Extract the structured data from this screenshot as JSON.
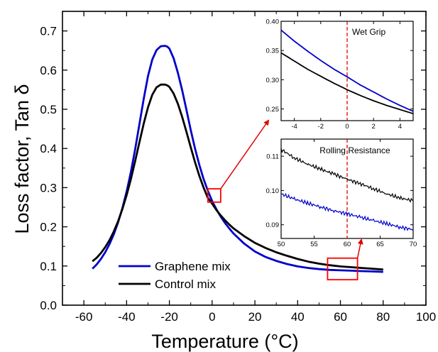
{
  "chart_data": [
    {
      "type": "line",
      "xlabel": "Temperature (°C)",
      "ylabel": "Loss factor, Tan δ",
      "xlim": [
        -70,
        100
      ],
      "ylim": [
        0,
        0.75
      ],
      "xticks": [
        -60,
        -40,
        -20,
        0,
        20,
        40,
        60,
        80,
        100
      ],
      "yticks": [
        0.0,
        0.1,
        0.2,
        0.3,
        0.4,
        0.5,
        0.6,
        0.7
      ],
      "legend_position": "bottom-left",
      "series": [
        {
          "name": "Graphene mix",
          "color": "#0000cc",
          "x": [
            -56,
            -54,
            -52,
            -50,
            -48,
            -46,
            -44,
            -42,
            -40,
            -38,
            -36,
            -34,
            -32,
            -30,
            -28,
            -26,
            -24,
            -22,
            -21,
            -20,
            -18,
            -16,
            -14,
            -12,
            -10,
            -8,
            -6,
            -4,
            -2,
            0,
            2,
            4,
            6,
            8,
            10,
            15,
            20,
            25,
            30,
            35,
            40,
            45,
            50,
            55,
            60,
            65,
            70,
            75,
            80
          ],
          "y": [
            0.093,
            0.104,
            0.118,
            0.135,
            0.156,
            0.181,
            0.211,
            0.247,
            0.29,
            0.34,
            0.398,
            0.462,
            0.526,
            0.585,
            0.627,
            0.651,
            0.661,
            0.662,
            0.66,
            0.655,
            0.63,
            0.593,
            0.548,
            0.498,
            0.447,
            0.4,
            0.358,
            0.322,
            0.292,
            0.266,
            0.245,
            0.226,
            0.21,
            0.196,
            0.183,
            0.157,
            0.137,
            0.123,
            0.113,
            0.105,
            0.099,
            0.095,
            0.092,
            0.09,
            0.089,
            0.088,
            0.087,
            0.086,
            0.085
          ]
        },
        {
          "name": "Control mix",
          "color": "#000000",
          "x": [
            -56,
            -54,
            -52,
            -50,
            -48,
            -46,
            -44,
            -42,
            -40,
            -38,
            -36,
            -34,
            -32,
            -30,
            -28,
            -26,
            -24,
            -22,
            -21,
            -20,
            -18,
            -16,
            -14,
            -12,
            -10,
            -8,
            -6,
            -4,
            -2,
            0,
            2,
            4,
            6,
            8,
            10,
            15,
            20,
            25,
            30,
            35,
            40,
            45,
            50,
            55,
            60,
            65,
            70,
            75,
            80
          ],
          "y": [
            0.112,
            0.121,
            0.133,
            0.148,
            0.166,
            0.188,
            0.214,
            0.245,
            0.281,
            0.322,
            0.368,
            0.416,
            0.463,
            0.505,
            0.537,
            0.556,
            0.563,
            0.563,
            0.561,
            0.557,
            0.54,
            0.514,
            0.48,
            0.442,
            0.403,
            0.365,
            0.33,
            0.3,
            0.274,
            0.259,
            0.243,
            0.229,
            0.217,
            0.206,
            0.196,
            0.176,
            0.159,
            0.146,
            0.135,
            0.126,
            0.118,
            0.111,
            0.106,
            0.102,
            0.099,
            0.097,
            0.095,
            0.093,
            0.091
          ]
        }
      ],
      "annotations": [
        {
          "type": "box",
          "x_range": [
            -2,
            4
          ],
          "y_range": [
            0.263,
            0.297
          ],
          "color": "#ff0000"
        },
        {
          "type": "box",
          "x_range": [
            54,
            68
          ],
          "y_range": [
            0.065,
            0.12
          ],
          "color": "#ff0000"
        }
      ]
    },
    {
      "type": "line",
      "title": "Wet Grip",
      "xlim": [
        -5,
        5
      ],
      "ylim": [
        0.23,
        0.4
      ],
      "xticks": [
        -4,
        -2,
        0,
        2,
        4
      ],
      "yticks": [
        0.25,
        0.3,
        0.35,
        0.4
      ],
      "ytick_labels": [
        "0.25",
        "0.30",
        "0.35",
        "0.40"
      ],
      "vline": 0,
      "series": [
        {
          "name": "Graphene mix",
          "color": "#0000cc",
          "x": [
            -5,
            -4,
            -3,
            -2,
            -1,
            0,
            1,
            2,
            3,
            4,
            5
          ],
          "y": [
            0.385,
            0.366,
            0.349,
            0.333,
            0.318,
            0.305,
            0.291,
            0.279,
            0.267,
            0.256,
            0.246
          ]
        },
        {
          "name": "Control mix",
          "color": "#000000",
          "x": [
            -5,
            -4,
            -3,
            -2,
            -1,
            0,
            1,
            2,
            3,
            4,
            5
          ],
          "y": [
            0.346,
            0.332,
            0.318,
            0.306,
            0.294,
            0.283,
            0.273,
            0.264,
            0.256,
            0.249,
            0.242
          ]
        }
      ]
    },
    {
      "type": "line",
      "title": "Rolling Resistance",
      "xlim": [
        50,
        70
      ],
      "ylim": [
        0.086,
        0.115
      ],
      "xticks": [
        50,
        55,
        60,
        65,
        70
      ],
      "yticks": [
        0.09,
        0.1,
        0.11
      ],
      "ytick_labels": [
        "0.09",
        "0.10",
        "0.11"
      ],
      "vline": 60,
      "series": [
        {
          "name": "Graphene mix",
          "color": "#0000cc",
          "x": [
            50,
            52,
            54,
            56,
            58,
            60,
            62,
            64,
            66,
            68,
            70
          ],
          "y": [
            0.099,
            0.0975,
            0.0963,
            0.0952,
            0.0941,
            0.0932,
            0.0922,
            0.0912,
            0.0903,
            0.0893,
            0.0886
          ]
        },
        {
          "name": "Control mix",
          "color": "#000000",
          "x": [
            50,
            52,
            54,
            56,
            58,
            60,
            62,
            64,
            66,
            68,
            70
          ],
          "y": [
            0.112,
            0.1095,
            0.1077,
            0.1062,
            0.1048,
            0.1033,
            0.102,
            0.1005,
            0.099,
            0.0978,
            0.097
          ]
        }
      ]
    }
  ]
}
